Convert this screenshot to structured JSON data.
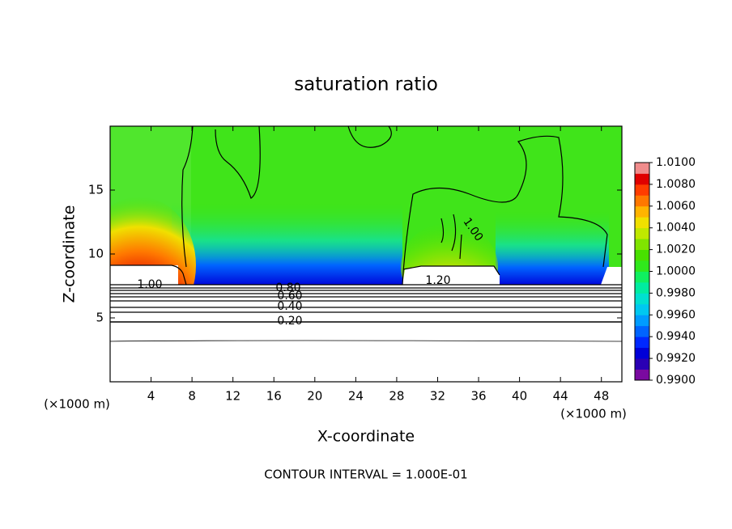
{
  "chart_data": {
    "type": "contour",
    "title": "saturation ratio",
    "x_label": "X-coordinate",
    "y_label": "Z-coordinate",
    "x_unit": "(×1000 m)",
    "y_unit": "(×1000 m)",
    "footer": "CONTOUR INTERVAL = 1.000E-01",
    "xlim": [
      0,
      50
    ],
    "xticks": [
      4,
      8,
      12,
      16,
      20,
      24,
      28,
      32,
      36,
      40,
      44,
      48
    ],
    "ylim": [
      0,
      20
    ],
    "yticks": [
      5,
      10,
      15
    ],
    "contour_labels": [
      "1.00",
      "0.80",
      "0.60",
      "0.40",
      "0.20",
      "1.20",
      "1.00"
    ],
    "colorbar": {
      "clim": [
        0.99,
        1.01
      ],
      "colors": [
        "#7a0aa0",
        "#2a00b4",
        "#0000d8",
        "#0028ff",
        "#0064ff",
        "#009cff",
        "#00c8f0",
        "#00e0d0",
        "#00eca0",
        "#10f060",
        "#30e81c",
        "#48e000",
        "#80e400",
        "#c0e800",
        "#f0e000",
        "#ffb400",
        "#ff7800",
        "#ff3c00",
        "#e00000",
        "#f08c8c"
      ],
      "ticks": [
        {
          "value": 0.99,
          "label": "0.9900"
        },
        {
          "value": 0.992,
          "label": "0.9920"
        },
        {
          "value": 0.994,
          "label": "0.9940"
        },
        {
          "value": 0.996,
          "label": "0.9960"
        },
        {
          "value": 0.998,
          "label": "0.9980"
        },
        {
          "value": 1.0,
          "label": "1.0000"
        },
        {
          "value": 1.002,
          "label": "1.0020"
        },
        {
          "value": 1.004,
          "label": "1.0040"
        },
        {
          "value": 1.006,
          "label": "1.0060"
        },
        {
          "value": 1.008,
          "label": "1.0080"
        },
        {
          "value": 1.01,
          "label": "1.0100"
        }
      ]
    }
  }
}
